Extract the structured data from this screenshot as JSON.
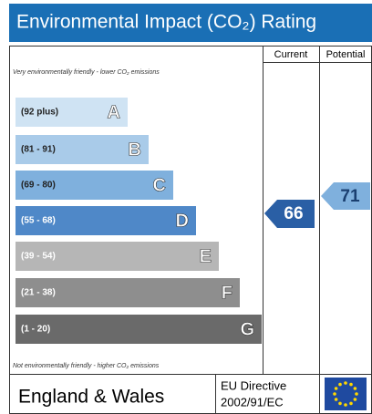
{
  "title": "Environmental Impact (CO₂) Rating",
  "columns": [
    "Current",
    "Potential"
  ],
  "top_note": "Very environmentally friendly - lower CO₂ emissions",
  "bottom_note": "Not environmentally friendly - higher CO₂ emissions",
  "bands": [
    {
      "range": "(92 plus)",
      "letter": "A"
    },
    {
      "range": "(81 - 91)",
      "letter": "B"
    },
    {
      "range": "(69 - 80)",
      "letter": "C"
    },
    {
      "range": "(55 - 68)",
      "letter": "D"
    },
    {
      "range": "(39 - 54)",
      "letter": "E"
    },
    {
      "range": "(21 - 38)",
      "letter": "F"
    },
    {
      "range": "(1 - 20)",
      "letter": "G"
    }
  ],
  "current": 66,
  "potential": 71,
  "footer": {
    "region": "England & Wales",
    "directive": [
      "EU Directive",
      "2002/91/EC"
    ]
  }
}
